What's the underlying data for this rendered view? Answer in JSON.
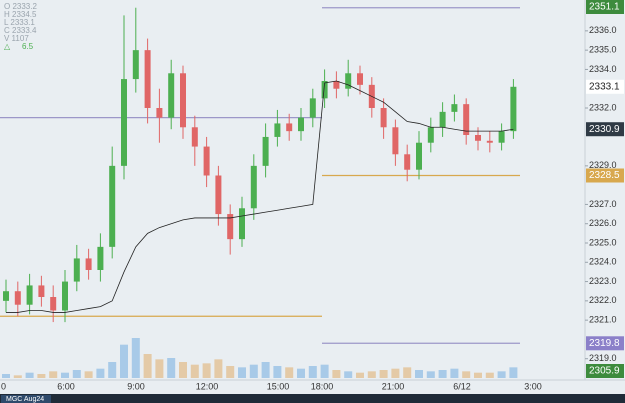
{
  "chart_data": {
    "type": "candlestick",
    "symbol": "MGC Aug24",
    "legend": [
      "O 2333.2",
      "H 2334.5",
      "L 2333.1",
      "C 2333.4",
      "V 1107"
    ],
    "change": "6.5",
    "up_color": "#4caf50",
    "down_color": "#e06666",
    "open": [
      2322.0,
      2322.5,
      2321.8,
      2322.8,
      2322.2,
      2321.5,
      2323.0,
      2324.2,
      2323.6,
      2324.8,
      2329.0,
      2333.5,
      2335.0,
      2332.0,
      2331.5,
      2333.8,
      2331.0,
      2330.0,
      2328.5,
      2326.5,
      2325.2,
      2326.8,
      2329.0,
      2330.5,
      2331.2,
      2330.8,
      2331.5,
      2332.5,
      2333.4,
      2333.0,
      2333.8,
      2333.2,
      2332.0,
      2331.0,
      2329.6,
      2328.8,
      2330.2,
      2331.0,
      2331.8,
      2332.2,
      2330.6,
      2330.3,
      2330.2,
      2330.8
    ],
    "high": [
      2323.1,
      2323.0,
      2323.4,
      2323.3,
      2322.8,
      2323.6,
      2324.9,
      2324.7,
      2325.5,
      2330.0,
      2336.8,
      2337.2,
      2335.6,
      2333.0,
      2334.5,
      2334.2,
      2331.6,
      2330.5,
      2329.0,
      2327.0,
      2327.4,
      2329.6,
      2331.2,
      2331.9,
      2331.7,
      2332.0,
      2333.0,
      2334.0,
      2333.9,
      2334.5,
      2334.2,
      2333.6,
      2332.5,
      2331.4,
      2330.1,
      2330.8,
      2331.5,
      2332.3,
      2332.7,
      2332.5,
      2331.0,
      2330.8,
      2331.2,
      2333.5
    ],
    "low": [
      2321.4,
      2321.2,
      2321.3,
      2321.7,
      2320.9,
      2320.9,
      2322.5,
      2323.1,
      2323.0,
      2324.2,
      2328.3,
      2332.8,
      2331.2,
      2330.2,
      2330.9,
      2330.4,
      2329.0,
      2327.9,
      2325.9,
      2324.4,
      2324.8,
      2326.2,
      2328.4,
      2330.0,
      2330.3,
      2330.3,
      2331.0,
      2332.0,
      2332.5,
      2332.6,
      2332.7,
      2331.5,
      2330.4,
      2329.0,
      2328.2,
      2328.3,
      2329.7,
      2330.5,
      2331.3,
      2330.1,
      2329.8,
      2329.7,
      2329.8,
      2330.4
    ],
    "close": [
      2322.5,
      2321.8,
      2322.8,
      2322.2,
      2321.5,
      2323.0,
      2324.2,
      2323.6,
      2324.8,
      2329.0,
      2333.5,
      2335.0,
      2332.0,
      2331.5,
      2333.8,
      2331.0,
      2330.0,
      2328.5,
      2326.5,
      2325.2,
      2326.8,
      2329.0,
      2330.5,
      2331.2,
      2330.8,
      2331.5,
      2332.5,
      2333.4,
      2333.0,
      2333.8,
      2333.2,
      2332.0,
      2331.0,
      2329.6,
      2328.8,
      2330.2,
      2331.0,
      2331.8,
      2332.2,
      2330.6,
      2330.3,
      2330.2,
      2330.8,
      2333.1
    ],
    "volume": [
      3,
      2,
      4,
      3,
      5,
      4,
      6,
      5,
      7,
      12,
      25,
      30,
      18,
      14,
      15,
      12,
      10,
      11,
      14,
      9,
      8,
      10,
      12,
      9,
      8,
      7,
      9,
      10,
      6,
      5,
      4,
      5,
      6,
      7,
      8,
      6,
      5,
      6,
      7,
      5,
      4,
      4,
      5,
      8
    ],
    "vwap": [
      2321.4,
      2321.4,
      2321.5,
      2321.5,
      2321.4,
      2321.4,
      2321.5,
      2321.6,
      2321.7,
      2322.0,
      2323.5,
      2324.8,
      2325.5,
      2325.8,
      2326.0,
      2326.2,
      2326.3,
      2326.3,
      2326.3,
      2326.3,
      2326.4,
      2326.5,
      2326.6,
      2326.7,
      2326.8,
      2326.9,
      2327.0,
      2333.3,
      2333.4,
      2333.2,
      2332.9,
      2332.6,
      2332.3,
      2331.8,
      2331.3,
      2331.2,
      2331.0,
      2331.0,
      2330.9,
      2330.8,
      2330.8,
      2330.8,
      2330.8,
      2330.9
    ],
    "vwap_color": "#222222",
    "levels": [
      {
        "value": 2331.5,
        "color": "#9c97c8"
      },
      {
        "value": 2321.2,
        "color": "#d8a84e"
      },
      {
        "value": 2337.2,
        "color": "#9c97c8"
      },
      {
        "value": 2328.5,
        "color": "#d8a84e"
      },
      {
        "value": 2319.8,
        "color": "#9c97c8"
      }
    ],
    "price_labels": [
      {
        "value": 2351.1,
        "color": "#3d8b3d"
      },
      {
        "value": 2333.1,
        "color": "#ffffff"
      },
      {
        "value": 2330.9,
        "color": "#2f3a45"
      },
      {
        "value": 2328.5,
        "color": "#d8a84e"
      },
      {
        "value": 2319.8,
        "color": "#8b80c9"
      },
      {
        "value": 2305.9,
        "color": "#3d8b3d"
      }
    ],
    "x_labels": [
      "0",
      "6:00",
      "9:00",
      "12:00",
      "15:00",
      "18:00",
      "21:00",
      "6/12",
      "3:00"
    ],
    "ylim": [
      2318.0,
      2337.6
    ],
    "yticks": [
      {
        "value": 2336,
        "label": "2336.0"
      },
      {
        "value": 2335,
        "label": "2335.0"
      },
      {
        "value": 2334,
        "label": "2334.0"
      },
      {
        "value": 2332,
        "label": "2332.0"
      },
      {
        "value": 2329,
        "label": "2329.0"
      },
      {
        "value": 2327,
        "label": "2327.0"
      },
      {
        "value": 2326,
        "label": "2326.0"
      },
      {
        "value": 2325,
        "label": "2325.0"
      },
      {
        "value": 2324,
        "label": "2324.0"
      },
      {
        "value": 2323,
        "label": "2323.0"
      },
      {
        "value": 2322,
        "label": "2322.0"
      },
      {
        "value": 2321,
        "label": "2321.0"
      },
      {
        "value": 2319,
        "label": "2319.0"
      }
    ]
  }
}
